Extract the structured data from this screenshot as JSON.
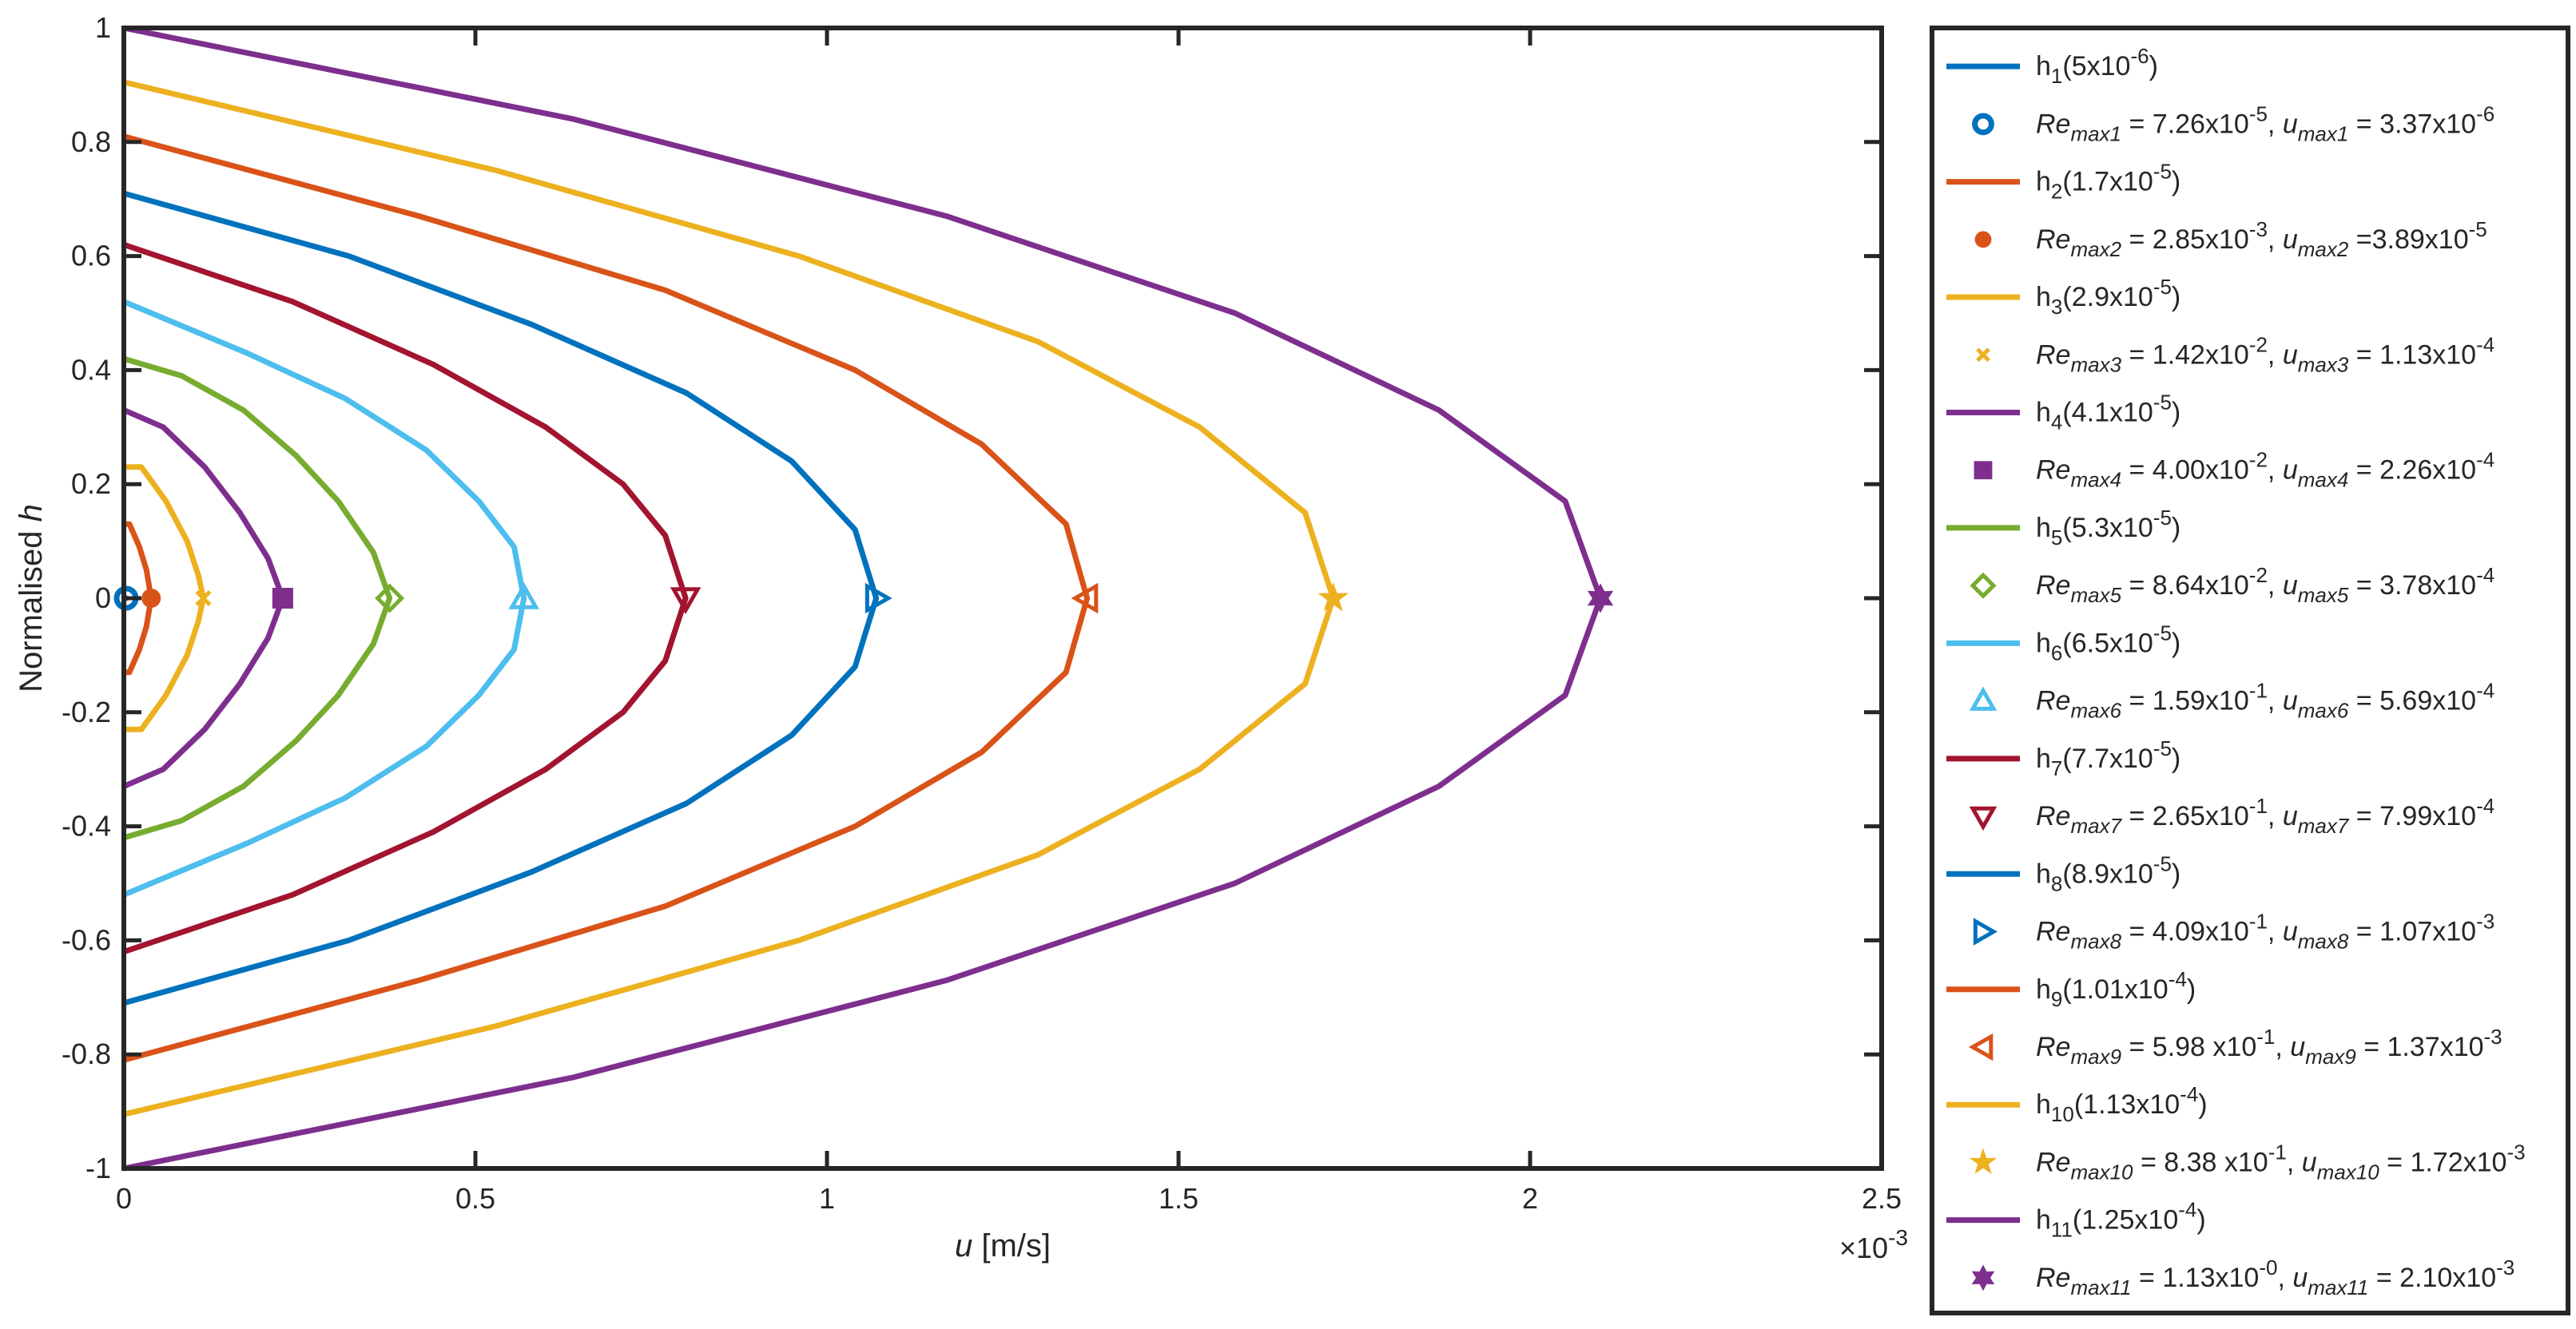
{
  "chart_data": {
    "type": "line",
    "xlabel": "u [m/s]",
    "ylabel": "Normalised h",
    "xlim": [
      0,
      0.0025
    ],
    "ylim": [
      -1,
      1
    ],
    "x_exponent_label": "×10",
    "x_exponent_power": "-3",
    "x_ticks": [
      {
        "value": 0,
        "label": "0"
      },
      {
        "value": 0.0005,
        "label": "0.5"
      },
      {
        "value": 0.001,
        "label": "1"
      },
      {
        "value": 0.0015,
        "label": "1.5"
      },
      {
        "value": 0.002,
        "label": "2"
      },
      {
        "value": 0.0025,
        "label": "2.5"
      }
    ],
    "y_ticks": [
      {
        "value": -1,
        "label": "-1"
      },
      {
        "value": -0.8,
        "label": "-0.8"
      },
      {
        "value": -0.6,
        "label": "-0.6"
      },
      {
        "value": -0.4,
        "label": "-0.4"
      },
      {
        "value": -0.2,
        "label": "-0.2"
      },
      {
        "value": 0,
        "label": "0"
      },
      {
        "value": 0.2,
        "label": "0.2"
      },
      {
        "value": 0.4,
        "label": "0.4"
      },
      {
        "value": 0.6,
        "label": "0.6"
      },
      {
        "value": 0.8,
        "label": "0.8"
      },
      {
        "value": 1,
        "label": "1"
      }
    ],
    "grid": false,
    "legend_position": "outside-right",
    "series": [
      {
        "name": "h1",
        "legend_base": "h",
        "legend_sub": "1",
        "legend_rest": "(5x10",
        "legend_sup": "-6",
        "legend_tail": ")",
        "color": "#0072BD",
        "marker": "circle-open",
        "edge_h": 0.002,
        "profile_x": [
          3.3e-06
        ],
        "profile_y": [
          0
        ],
        "max_point": [
          3.37e-06,
          0
        ],
        "marker_label": {
          "a": "Re",
          "b": "max1",
          "c": " = 7.26x10",
          "d": "-5",
          "e": ", ",
          "f": "u",
          "g": "max1",
          "h": " = 3.37x10",
          "i": "-6"
        }
      },
      {
        "name": "h2",
        "legend_base": "h",
        "legend_sub": "2",
        "legend_rest": "(1.7x10",
        "legend_sup": "-5",
        "legend_tail": ")",
        "color": "#D95319",
        "marker": "circle-filled",
        "edge_h": 0.13,
        "profile_x": [
          8e-06,
          2.2e-05,
          3.2e-05,
          3.89e-05
        ],
        "profile_y": [
          0.13,
          0.09,
          0.05,
          0
        ],
        "max_point": [
          3.89e-05,
          0
        ],
        "marker_label": {
          "a": "Re",
          "b": "max2",
          "c": " = 2.85x10",
          "d": "-3",
          "e": ", ",
          "f": "u",
          "g": "max2",
          "h": " =3.89x10",
          "i": "-5"
        }
      },
      {
        "name": "h3",
        "legend_base": "h",
        "legend_sub": "3",
        "legend_rest": "(2.9x10",
        "legend_sup": "-5",
        "legend_tail": ")",
        "color": "#EDB120",
        "marker": "x",
        "edge_h": 0.23,
        "profile_x": [
          2.5e-05,
          6e-05,
          9e-05,
          0.000106,
          0.000113
        ],
        "profile_y": [
          0.23,
          0.17,
          0.1,
          0.04,
          0
        ],
        "max_point": [
          0.000113,
          0
        ],
        "marker_label": {
          "a": "Re",
          "b": "max3",
          "c": " = 1.42x10",
          "d": "-2",
          "e": ", ",
          "f": "u",
          "g": "max3",
          "h": " = 1.13x10",
          "i": "-4"
        }
      },
      {
        "name": "h4",
        "legend_base": "h",
        "legend_sub": "4",
        "legend_rest": "(4.1x10",
        "legend_sup": "-5",
        "legend_tail": ")",
        "color": "#7E2F8E",
        "marker": "square-filled",
        "edge_h": 0.33,
        "profile_x": [
          5.6e-05,
          0.000115,
          0.000165,
          0.000205,
          0.000226
        ],
        "profile_y": [
          0.3,
          0.23,
          0.15,
          0.07,
          0
        ],
        "max_point": [
          0.000226,
          0
        ],
        "marker_label": {
          "a": "Re",
          "b": "max4",
          "c": " = 4.00x10",
          "d": "-2",
          "e": ", ",
          "f": "u",
          "g": "max4",
          "h": " = 2.26x10",
          "i": "-4"
        }
      },
      {
        "name": "h5",
        "legend_base": "h",
        "legend_sub": "5",
        "legend_rest": "(5.3x10",
        "legend_sup": "-5",
        "legend_tail": ")",
        "color": "#77AC30",
        "marker": "diamond-open",
        "edge_h": 0.42,
        "profile_x": [
          8.2e-05,
          0.00017,
          0.000245,
          0.000305,
          0.000355,
          0.000378
        ],
        "profile_y": [
          0.39,
          0.33,
          0.25,
          0.17,
          0.08,
          0
        ],
        "max_point": [
          0.000378,
          0
        ],
        "marker_label": {
          "a": "Re",
          "b": "max5",
          "c": " = 8.64x10",
          "d": "-2",
          "e": ", ",
          "f": "u",
          "g": "max5",
          "h": " = 3.78x10",
          "i": "-4"
        }
      },
      {
        "name": "h6",
        "legend_base": "h",
        "legend_sub": "6",
        "legend_rest": "(6.5x10",
        "legend_sup": "-5",
        "legend_tail": ")",
        "color": "#4DBEEE",
        "marker": "triangle-up-open",
        "edge_h": 0.52,
        "profile_x": [
          0.000175,
          0.000315,
          0.00043,
          0.000505,
          0.000555,
          0.000569
        ],
        "profile_y": [
          0.43,
          0.35,
          0.26,
          0.17,
          0.09,
          0
        ],
        "max_point": [
          0.000569,
          0
        ],
        "marker_label": {
          "a": "Re",
          "b": "max6",
          "c": " = 1.59x10",
          "d": "-1",
          "e": ", ",
          "f": "u",
          "g": "max6",
          "h": " = 5.69x10",
          "i": "-4"
        }
      },
      {
        "name": "h7",
        "legend_base": "h",
        "legend_sub": "7",
        "legend_rest": "(7.7x10",
        "legend_sup": "-5",
        "legend_tail": ")",
        "color": "#A2142F",
        "marker": "triangle-down-open",
        "edge_h": 0.62,
        "profile_x": [
          0.00024,
          0.00044,
          0.0006,
          0.00071,
          0.00077,
          0.000799
        ],
        "profile_y": [
          0.52,
          0.41,
          0.3,
          0.2,
          0.11,
          0
        ],
        "max_point": [
          0.000799,
          0
        ],
        "marker_label": {
          "a": "Re",
          "b": "max7",
          "c": " = 2.65x10",
          "d": "-1",
          "e": ", ",
          "f": "u",
          "g": "max7",
          "h": " = 7.99x10",
          "i": "-4"
        }
      },
      {
        "name": "h8",
        "legend_base": "h",
        "legend_sub": "8",
        "legend_rest": "(8.9x10",
        "legend_sup": "-5",
        "legend_tail": ")",
        "color": "#0072BD",
        "marker": "triangle-right-open",
        "edge_h": 0.71,
        "profile_x": [
          0.00032,
          0.00058,
          0.0008,
          0.00095,
          0.00104,
          0.00107
        ],
        "profile_y": [
          0.6,
          0.48,
          0.36,
          0.24,
          0.12,
          0
        ],
        "max_point": [
          0.00107,
          0
        ],
        "marker_label": {
          "a": "Re",
          "b": "max8",
          "c": " = 4.09x10",
          "d": "-1",
          "e": ", ",
          "f": "u",
          "g": "max8",
          "h": " = 1.07x10",
          "i": "-3"
        }
      },
      {
        "name": "h9",
        "legend_base": "h",
        "legend_sub": "9",
        "legend_rest": "(1.01x10",
        "legend_sup": "-4",
        "legend_tail": ")",
        "color": "#D95319",
        "marker": "triangle-left-open",
        "edge_h": 0.81,
        "profile_x": [
          0.00042,
          0.00077,
          0.00104,
          0.00122,
          0.00134,
          0.00137
        ],
        "profile_y": [
          0.67,
          0.54,
          0.4,
          0.27,
          0.13,
          0
        ],
        "max_point": [
          0.00137,
          0
        ],
        "marker_label": {
          "a": "Re",
          "b": "max9",
          "c": " = 5.98 x10",
          "d": "-1",
          "e": ", ",
          "f": "u",
          "g": "max9",
          "h": " = 1.37x10",
          "i": "-3"
        }
      },
      {
        "name": "h10",
        "legend_base": "h",
        "legend_sub": "10",
        "legend_rest": "(1.13x10",
        "legend_sup": "-4",
        "legend_tail": ")",
        "color": "#EDB120",
        "marker": "star-filled",
        "edge_h": 0.905,
        "profile_x": [
          0.00053,
          0.00096,
          0.0013,
          0.00153,
          0.00168,
          0.00172
        ],
        "profile_y": [
          0.75,
          0.6,
          0.45,
          0.3,
          0.15,
          0
        ],
        "max_point": [
          0.00172,
          0
        ],
        "marker_label": {
          "a": "Re",
          "b": "max10",
          "c": " = 8.38 x10",
          "d": "-1",
          "e": ", ",
          "f": "u",
          "g": "max10",
          "h": " = 1.72x10",
          "i": "-3"
        }
      },
      {
        "name": "h11",
        "legend_base": "h",
        "legend_sub": "11",
        "legend_rest": "(1.25x10",
        "legend_sup": "-4",
        "legend_tail": ")",
        "color": "#7E2F8E",
        "marker": "hexagram-filled",
        "edge_h": 1.0,
        "profile_x": [
          0.00064,
          0.00117,
          0.00158,
          0.00187,
          0.00205,
          0.0021
        ],
        "profile_y": [
          0.84,
          0.67,
          0.5,
          0.33,
          0.17,
          0
        ],
        "max_point": [
          0.0021,
          0
        ],
        "marker_label": {
          "a": "Re",
          "b": "max11",
          "c": " = 1.13x10",
          "d": "-0",
          "e": ", ",
          "f": "u",
          "g": "max11",
          "h": " = 2.10x10",
          "i": "-3"
        }
      }
    ]
  }
}
